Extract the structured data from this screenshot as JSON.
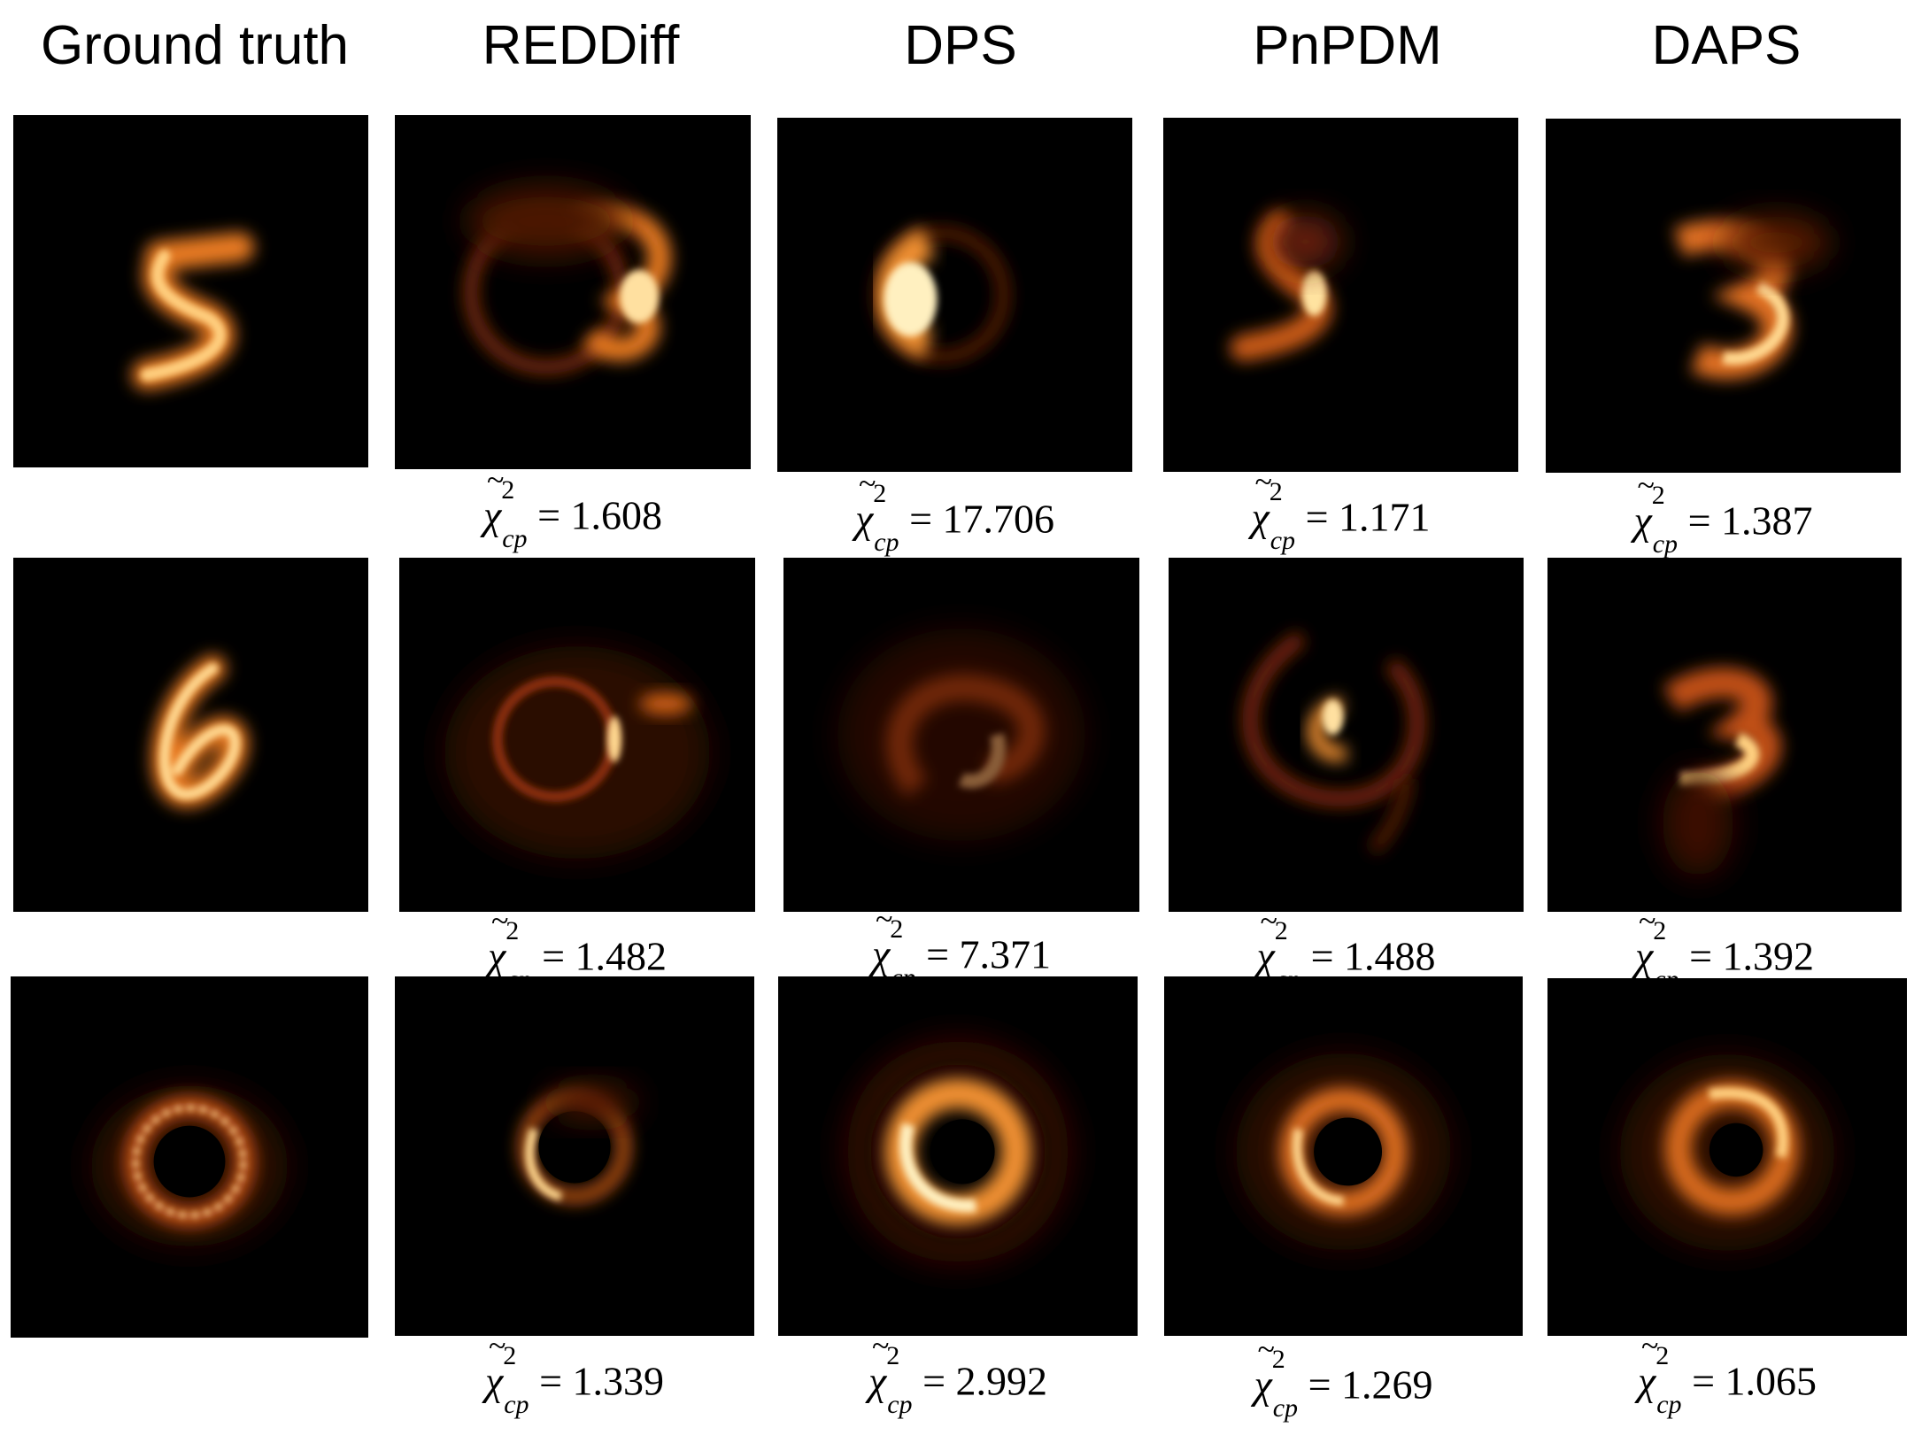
{
  "columns": [
    {
      "title": "Ground truth"
    },
    {
      "title": "REDDiff"
    },
    {
      "title": "DPS"
    },
    {
      "title": "PnPDM"
    },
    {
      "title": "DAPS"
    }
  ],
  "metric": {
    "symbol": "χ",
    "tilde": "~",
    "superscript": "2",
    "subscript": "cp",
    "equals": " = "
  },
  "rows": [
    {
      "values": [
        "1.608",
        "17.706",
        "1.171",
        "1.387"
      ]
    },
    {
      "values": [
        "1.482",
        "7.371",
        "1.488",
        "1.392"
      ]
    },
    {
      "values": [
        "1.339",
        "2.992",
        "1.269",
        "1.065"
      ]
    }
  ],
  "colors": {
    "panel_bg": "#000000",
    "glow_core": "#ffe9b0",
    "glow_mid": "#f0902a",
    "glow_outer": "#8a2a08"
  }
}
